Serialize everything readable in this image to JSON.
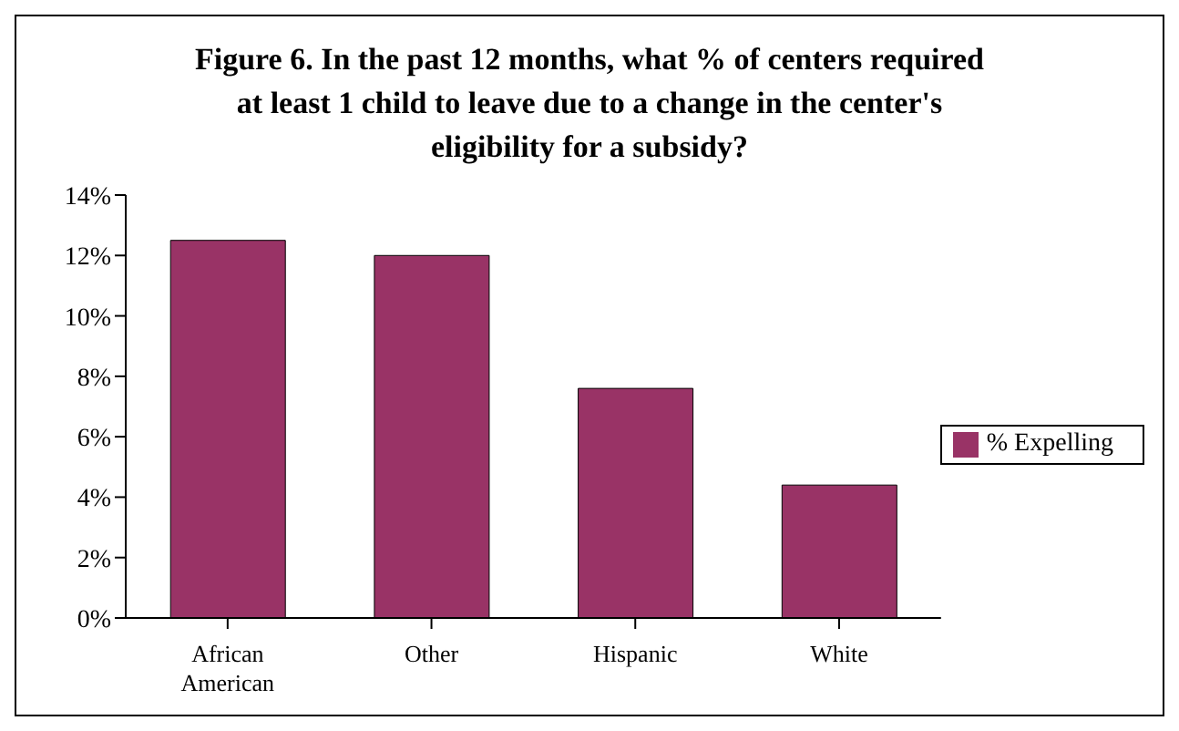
{
  "chart_data": {
    "type": "bar",
    "title": "Figure 6.  In the past 12 months, what % of centers required at least 1 child to leave due to a change in the center's eligibility for a subsidy?",
    "categories": [
      "African American",
      "Other",
      "Hispanic",
      "White"
    ],
    "series": [
      {
        "name": "% Expelling",
        "color": "#993366",
        "values": [
          12.5,
          12.0,
          7.6,
          4.4
        ]
      }
    ],
    "ylim": [
      0,
      14
    ],
    "yticks": [
      {
        "value": 0,
        "label": "0%"
      },
      {
        "value": 2,
        "label": "2%"
      },
      {
        "value": 4,
        "label": "4%"
      },
      {
        "value": 6,
        "label": "6%"
      },
      {
        "value": 8,
        "label": "8%"
      },
      {
        "value": 10,
        "label": "10%"
      },
      {
        "value": 12,
        "label": "12%"
      },
      {
        "value": 14,
        "label": "14%"
      }
    ],
    "grid": false,
    "legend": "right"
  }
}
